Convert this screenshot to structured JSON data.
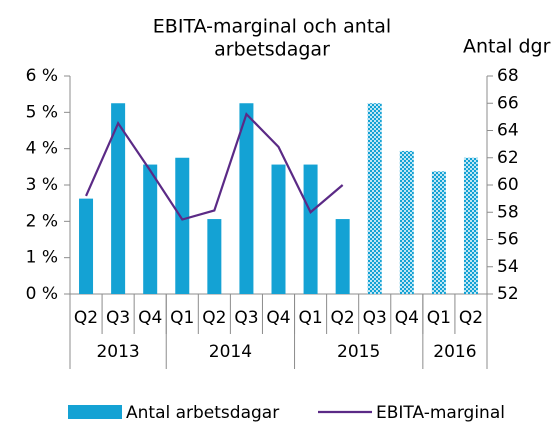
{
  "chart_data": {
    "type": "bar_line",
    "title": [
      "EBITA-marginal och antal",
      "arbetsdagar"
    ],
    "y2_label": "Antal dgr",
    "categories": [
      "Q2",
      "Q3",
      "Q4",
      "Q1",
      "Q2",
      "Q3",
      "Q4",
      "Q1",
      "Q2",
      "Q3",
      "Q4",
      "Q1",
      "Q2"
    ],
    "groups": [
      {
        "label": "2013",
        "span": 3
      },
      {
        "label": "2014",
        "span": 4
      },
      {
        "label": "2015",
        "span": 4
      },
      {
        "label": "2016",
        "span": 2
      }
    ],
    "series": [
      {
        "name": "Antal arbetsdagar",
        "type": "bar",
        "axis": "y2",
        "color": "#14a2d4",
        "values": [
          59,
          66,
          61.5,
          62,
          57.5,
          66,
          61.5,
          61.5,
          57.5,
          66,
          62.5,
          61,
          62
        ],
        "styles": [
          "solid",
          "solid",
          "solid",
          "solid",
          "solid",
          "solid",
          "solid",
          "solid",
          "solid",
          "hatched",
          "hatched",
          "hatched",
          "hatched"
        ]
      },
      {
        "name": "EBITA-marginal",
        "type": "line",
        "axis": "y",
        "color": "#5b2a86",
        "values": [
          2.7,
          4.7,
          3.4,
          2.05,
          2.3,
          4.95,
          4.05,
          2.25,
          3.0,
          null,
          null,
          null,
          null
        ]
      }
    ],
    "ylim": [
      0,
      6
    ],
    "yticks": [
      {
        "value": 0,
        "label": "0 %"
      },
      {
        "value": 1,
        "label": "1 %"
      },
      {
        "value": 2,
        "label": "2 %"
      },
      {
        "value": 3,
        "label": "3 %"
      },
      {
        "value": 4,
        "label": "4 %"
      },
      {
        "value": 5,
        "label": "5 %"
      },
      {
        "value": 6,
        "label": "6 %"
      }
    ],
    "y2lim": [
      52,
      68
    ],
    "y2ticks": [
      52,
      54,
      56,
      58,
      60,
      62,
      64,
      66,
      68
    ],
    "legend": "bottom"
  }
}
